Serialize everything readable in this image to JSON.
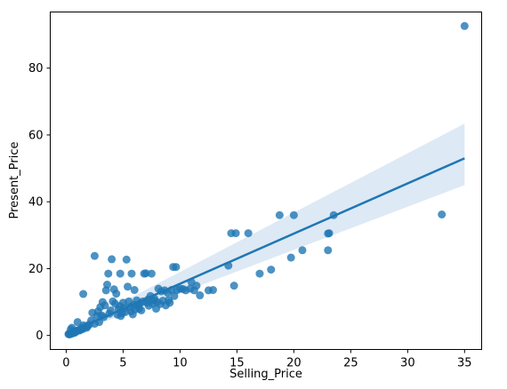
{
  "chart_data": {
    "type": "scatter",
    "xlabel": "Selling_Price",
    "ylabel": "Present_Price",
    "xlim": [
      -1.4,
      36.5
    ],
    "ylim": [
      -4.2,
      96.8
    ],
    "x_ticks": [
      0,
      5,
      10,
      15,
      20,
      25,
      30,
      35
    ],
    "y_ticks": [
      0,
      20,
      40,
      60,
      80
    ],
    "grid": false,
    "colors": {
      "points": "#1f77b4",
      "line": "#1f77b4",
      "band": "#c6dbef"
    },
    "series": [
      {
        "type": "scatter",
        "points": [
          [
            0.2,
            0.4
          ],
          [
            0.25,
            0.5
          ],
          [
            0.3,
            0.6
          ],
          [
            0.35,
            0.7
          ],
          [
            0.4,
            0.8
          ],
          [
            0.45,
            0.5
          ],
          [
            0.5,
            0.9
          ],
          [
            0.6,
            1.0
          ],
          [
            0.65,
            0.7
          ],
          [
            0.7,
            1.1
          ],
          [
            0.75,
            1.2
          ],
          [
            0.8,
            0.9
          ],
          [
            0.9,
            1.3
          ],
          [
            1.0,
            1.4
          ],
          [
            1.1,
            1.6
          ],
          [
            1.2,
            1.5
          ],
          [
            1.25,
            1.8
          ],
          [
            1.35,
            2.0
          ],
          [
            1.45,
            1.9
          ],
          [
            1.5,
            2.2
          ],
          [
            1.6,
            2.4
          ],
          [
            1.7,
            2.6
          ],
          [
            1.8,
            2.3
          ],
          [
            0.5,
            2.3
          ],
          [
            1.0,
            4.0
          ],
          [
            1.5,
            3.0
          ],
          [
            1.9,
            2.8
          ],
          [
            2.0,
            3.2
          ],
          [
            0.3,
            0.3
          ],
          [
            0.4,
            1.8
          ],
          [
            1.5,
            12.4
          ],
          [
            2.5,
            23.8
          ],
          [
            2.2,
            4.5
          ],
          [
            2.3,
            6.8
          ],
          [
            2.5,
            3.5
          ],
          [
            2.7,
            5.8
          ],
          [
            2.8,
            7.2
          ],
          [
            2.9,
            4.0
          ],
          [
            3.0,
            8.5
          ],
          [
            3.1,
            6.0
          ],
          [
            3.2,
            10.0
          ],
          [
            3.3,
            5.5
          ],
          [
            3.4,
            9.0
          ],
          [
            3.5,
            13.5
          ],
          [
            3.6,
            15.2
          ],
          [
            3.7,
            18.5
          ],
          [
            3.8,
            6.5
          ],
          [
            3.9,
            7.5
          ],
          [
            4.0,
            22.8
          ],
          [
            4.1,
            10.2
          ],
          [
            4.2,
            13.8
          ],
          [
            4.3,
            9.5
          ],
          [
            4.4,
            12.5
          ],
          [
            4.5,
            6.2
          ],
          [
            4.6,
            7.8
          ],
          [
            4.7,
            8.8
          ],
          [
            4.75,
            18.5
          ],
          [
            4.8,
            5.8
          ],
          [
            4.9,
            6.6
          ],
          [
            5.0,
            9.8
          ],
          [
            5.1,
            8.2
          ],
          [
            5.2,
            7.0
          ],
          [
            5.3,
            22.7
          ],
          [
            5.4,
            14.6
          ],
          [
            5.5,
            10.2
          ],
          [
            5.6,
            8.5
          ],
          [
            5.7,
            7.2
          ],
          [
            5.75,
            18.5
          ],
          [
            5.85,
            6.3
          ],
          [
            5.95,
            9.2
          ],
          [
            6.0,
            13.6
          ],
          [
            6.1,
            7.8
          ],
          [
            6.2,
            10.5
          ],
          [
            6.3,
            9.0
          ],
          [
            6.4,
            8.0
          ],
          [
            6.5,
            9.6
          ],
          [
            6.6,
            7.5
          ],
          [
            6.75,
            10.2
          ],
          [
            6.85,
            18.5
          ],
          [
            7.0,
            18.6
          ],
          [
            7.1,
            9.8
          ],
          [
            7.2,
            10.8
          ],
          [
            7.25,
            8.9
          ],
          [
            7.4,
            11.8
          ],
          [
            7.5,
            18.5
          ],
          [
            7.6,
            9.5
          ],
          [
            7.7,
            10.5
          ],
          [
            7.75,
            11.0
          ],
          [
            7.9,
            8.0
          ],
          [
            8.0,
            10.0
          ],
          [
            8.1,
            14.0
          ],
          [
            8.25,
            9.4
          ],
          [
            8.35,
            13.2
          ],
          [
            8.5,
            10.4
          ],
          [
            8.65,
            13.5
          ],
          [
            8.75,
            9.0
          ],
          [
            8.9,
            12.8
          ],
          [
            9.0,
            10.6
          ],
          [
            9.1,
            9.8
          ],
          [
            9.25,
            13.6
          ],
          [
            9.4,
            20.5
          ],
          [
            9.5,
            11.8
          ],
          [
            9.65,
            20.5
          ],
          [
            9.75,
            13.6
          ],
          [
            10.0,
            14.0
          ],
          [
            10.25,
            13.9
          ],
          [
            10.5,
            13.5
          ],
          [
            10.9,
            14.0
          ],
          [
            11.0,
            16.0
          ],
          [
            11.25,
            13.5
          ],
          [
            11.45,
            14.9
          ],
          [
            11.75,
            12.0
          ],
          [
            12.5,
            13.5
          ],
          [
            12.9,
            13.6
          ],
          [
            14.25,
            20.9
          ],
          [
            14.5,
            30.6
          ],
          [
            14.75,
            14.9
          ],
          [
            14.9,
            30.6
          ],
          [
            16.0,
            30.6
          ],
          [
            17.0,
            18.5
          ],
          [
            18.0,
            19.7
          ],
          [
            18.75,
            36.0
          ],
          [
            19.75,
            23.3
          ],
          [
            20.0,
            36.0
          ],
          [
            20.75,
            25.5
          ],
          [
            23.0,
            25.5
          ],
          [
            23.0,
            30.5
          ],
          [
            23.1,
            30.6
          ],
          [
            23.5,
            36.0
          ],
          [
            33.0,
            36.2
          ],
          [
            35.0,
            92.6
          ]
        ]
      },
      {
        "type": "line",
        "name": "",
        "x": [
          0.2,
          35.0
        ],
        "y": [
          0.75,
          53.0
        ],
        "band_lower": [
          0.0,
          45.0
        ],
        "band_upper": [
          1.6,
          63.4
        ]
      }
    ]
  }
}
